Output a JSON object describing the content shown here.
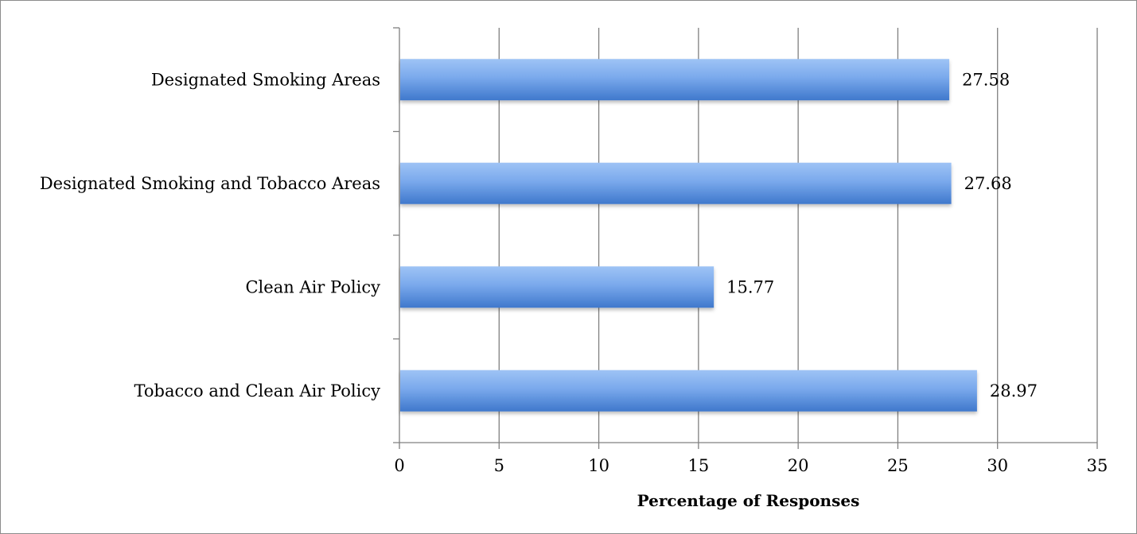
{
  "chart_data": {
    "type": "bar",
    "orientation": "horizontal",
    "title": "",
    "xlabel": "Percentage of Responses",
    "ylabel": "",
    "categories": [
      "Designated Smoking Areas",
      "Designated Smoking and Tobacco Areas",
      "Clean Air Policy",
      "Tobacco and Clean Air Policy"
    ],
    "values": [
      27.58,
      27.68,
      15.77,
      28.97
    ],
    "data_labels": [
      "27.58",
      "27.68",
      "15.77",
      "28.97"
    ],
    "xlim": [
      0,
      35
    ],
    "x_ticks": [
      "0",
      "5",
      "10",
      "15",
      "20",
      "25",
      "30",
      "35"
    ],
    "grid": "vertical",
    "legend": "none",
    "colors": {
      "bar_top": "#9ec3f5",
      "bar_bottom": "#3f78cc",
      "grid": "#808080"
    }
  }
}
